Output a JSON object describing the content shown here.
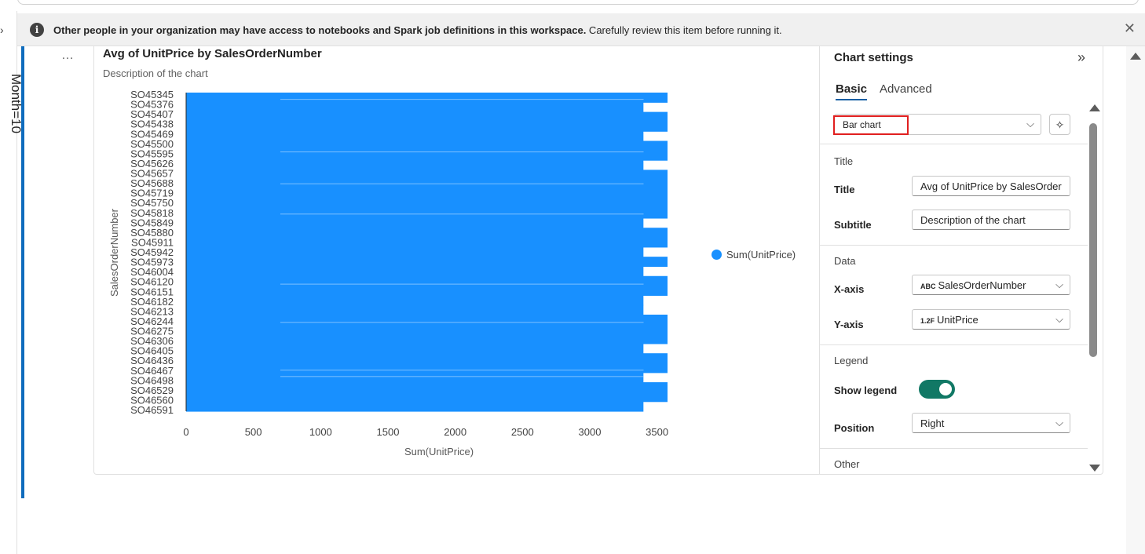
{
  "left_rail": {
    "vertical_text": "Month=10"
  },
  "banner": {
    "bold_text": "Other people in your organization may have access to notebooks and Spark job definitions in this workspace.",
    "text": " Carefully review this item before running it.",
    "close_glyph": "✕"
  },
  "cell": {
    "more_glyph": "…"
  },
  "chart_data": {
    "type": "bar",
    "orientation": "horizontal",
    "title": "Avg of UnitPrice by SalesOrderNumber",
    "subtitle": "Description of the chart",
    "xlabel": "Sum(UnitPrice)",
    "ylabel": "SalesOrderNumber",
    "xlim": [
      0,
      3578
    ],
    "x_ticks": [
      0,
      500,
      1000,
      1500,
      2000,
      2500,
      3000,
      3500
    ],
    "y_tick_labels": [
      "SO45345",
      "SO45376",
      "SO45407",
      "SO45438",
      "SO45469",
      "SO45500",
      "SO45595",
      "SO45626",
      "SO45657",
      "SO45688",
      "SO45719",
      "SO45750",
      "SO45818",
      "SO45849",
      "SO45880",
      "SO45911",
      "SO45942",
      "SO45973",
      "SO46004",
      "SO46120",
      "SO46151",
      "SO46182",
      "SO46213",
      "SO46244",
      "SO46275",
      "SO46306",
      "SO46405",
      "SO46436",
      "SO46467",
      "SO46498",
      "SO46529",
      "SO46560",
      "SO46591"
    ],
    "series": [
      {
        "name": "Sum(UnitPrice)",
        "color": "#1890ff",
        "note_values": [
          3578,
          3399,
          3578,
          3578,
          3399,
          3578,
          3578,
          3399,
          3578,
          3578,
          3578,
          3578,
          3578,
          3399,
          3578,
          3578,
          3399,
          3578,
          3399,
          3578,
          3578,
          3399,
          3399,
          3578,
          3578,
          3578,
          3399,
          3578,
          3578,
          3399,
          3578,
          3578,
          3399
        ]
      }
    ],
    "legend": {
      "position": "right",
      "entries": [
        "Sum(UnitPrice)"
      ]
    },
    "grid": false
  },
  "settings": {
    "header": "Chart settings",
    "collapse_glyph": "»",
    "tabs": [
      "Basic",
      "Advanced"
    ],
    "chart_type": "Bar chart",
    "sections": {
      "title": {
        "label": "Title",
        "title_label": "Title",
        "title_value": "Avg of UnitPrice by SalesOrder",
        "subtitle_label": "Subtitle",
        "subtitle_value": "Description of the chart"
      },
      "data": {
        "label": "Data",
        "x_label": "X-axis",
        "x_type": "ABC",
        "x_value": "SalesOrderNumber",
        "y_label": "Y-axis",
        "y_type": "1.2F",
        "y_value": "UnitPrice"
      },
      "legend": {
        "label": "Legend",
        "show_label": "Show legend",
        "show_on": true,
        "position_label": "Position",
        "position_value": "Right"
      },
      "other": {
        "label": "Other"
      }
    }
  }
}
